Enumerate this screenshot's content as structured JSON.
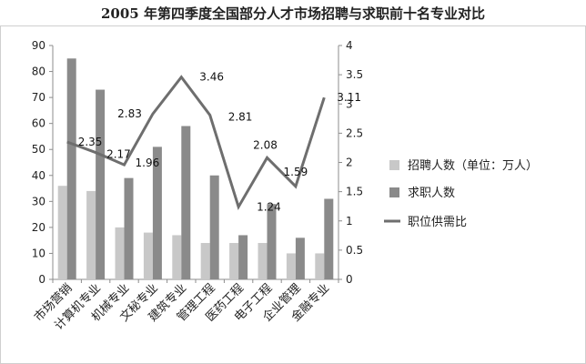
{
  "chart_data": {
    "type": "bar",
    "title": "2005 年第四季度全国部分人才市场招聘与求职前十名专业对比",
    "categories": [
      "市场营销",
      "计算机专业",
      "机械专业",
      "文秘专业",
      "建筑专业",
      "管理工程",
      "医药工程",
      "电子工程",
      "企业管理",
      "金融专业"
    ],
    "series": [
      {
        "name": "招聘人数（单位：万人）",
        "type": "bar",
        "axis": "left",
        "color": "#c8c8c8",
        "values": [
          36,
          34,
          20,
          18,
          17,
          14,
          14,
          14,
          10,
          10
        ]
      },
      {
        "name": "求职人数",
        "type": "bar",
        "axis": "left",
        "color": "#8a8a8a",
        "values": [
          85,
          73,
          39,
          51,
          59,
          40,
          17,
          29,
          16,
          31
        ]
      },
      {
        "name": "职位供需比",
        "type": "line",
        "axis": "right",
        "color": "#6e6e6e",
        "values": [
          2.35,
          2.17,
          1.96,
          2.83,
          3.46,
          2.81,
          1.24,
          2.08,
          1.59,
          3.11
        ]
      }
    ],
    "ylim_left": [
      0,
      90
    ],
    "yticks_left": [
      0,
      10,
      20,
      30,
      40,
      50,
      60,
      70,
      80,
      90
    ],
    "ylim_right": [
      0,
      4
    ],
    "yticks_right": [
      "0",
      "0.5",
      "1",
      "1.5",
      "2",
      "2.5",
      "3",
      "3.5",
      "4"
    ],
    "data_labels": [
      "2.35",
      "2.17",
      "1.96",
      "2.83",
      "3.46",
      "2.81",
      "1.24",
      "2.08",
      "1.59",
      "3.11"
    ],
    "grid": false,
    "legend_position": "right"
  }
}
